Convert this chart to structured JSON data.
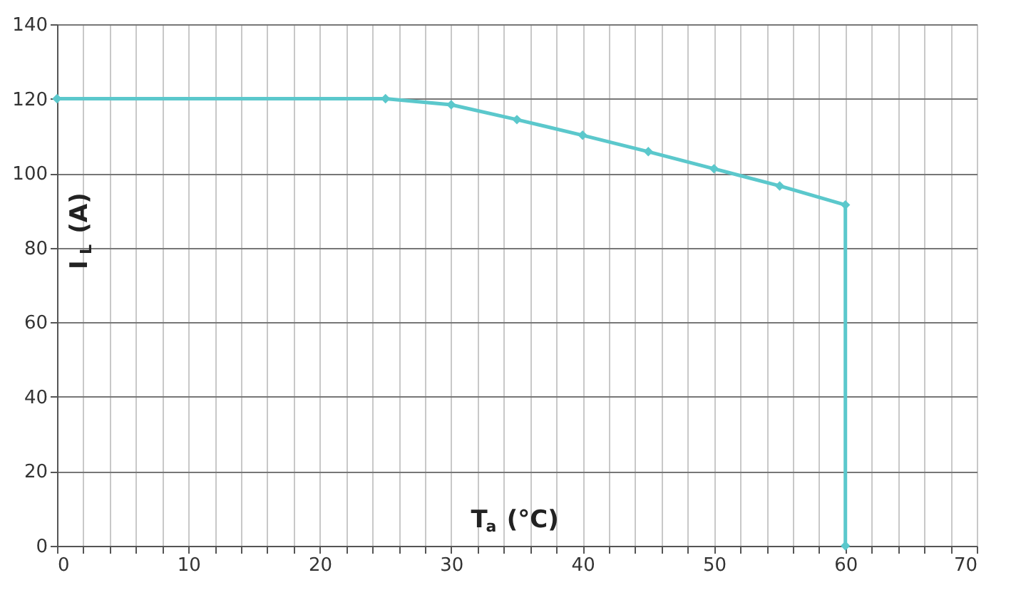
{
  "chart_data": {
    "type": "line",
    "xlabel": "T$_{a}$ (°C)",
    "ylabel": "I$_{L}$ (A)",
    "x": [
      0,
      25,
      30,
      35,
      40,
      45,
      50,
      55,
      60,
      60
    ],
    "series": [
      {
        "color": "#5bc8cc",
        "values": [
          120,
          120,
          118.4,
          114.4,
          110.2,
          105.8,
          101.2,
          96.6,
          91.5,
          0
        ]
      }
    ],
    "xlim": [
      0,
      70
    ],
    "ylim": [
      0,
      140
    ],
    "xticks": [
      0,
      {
        "value": 2,
        "label": null
      },
      {
        "value": 4,
        "label": null
      },
      {
        "value": 6,
        "label": null
      },
      {
        "value": 8,
        "label": null
      },
      10,
      {
        "value": 12,
        "label": null
      },
      {
        "value": 14,
        "label": null
      },
      {
        "value": 16,
        "label": null
      },
      {
        "value": 18,
        "label": null
      },
      20,
      {
        "value": 22,
        "label": null
      },
      {
        "value": 24,
        "label": null
      },
      {
        "value": 26,
        "label": null
      },
      {
        "value": 28,
        "label": null
      },
      30,
      {
        "value": 32,
        "label": null
      },
      {
        "value": 34,
        "label": null
      },
      {
        "value": 36,
        "label": null
      },
      {
        "value": 38,
        "label": null
      },
      40,
      {
        "value": 42,
        "label": null
      },
      {
        "value": 44,
        "label": null
      },
      {
        "value": 46,
        "label": null
      },
      {
        "value": 48,
        "label": null
      },
      50,
      {
        "value": 52,
        "label": null
      },
      {
        "value": 54,
        "label": null
      },
      {
        "value": 56,
        "label": null
      },
      {
        "value": 58,
        "label": null
      },
      60,
      {
        "value": 62,
        "label": null
      },
      {
        "value": 64,
        "label": null
      },
      {
        "value": 66,
        "label": null
      },
      {
        "value": 68,
        "label": null
      },
      70
    ],
    "yticks": [
      0,
      20,
      40,
      60,
      80,
      100,
      120,
      140
    ],
    "grid": true,
    "marker": "diamond",
    "line_style": "solid"
  }
}
